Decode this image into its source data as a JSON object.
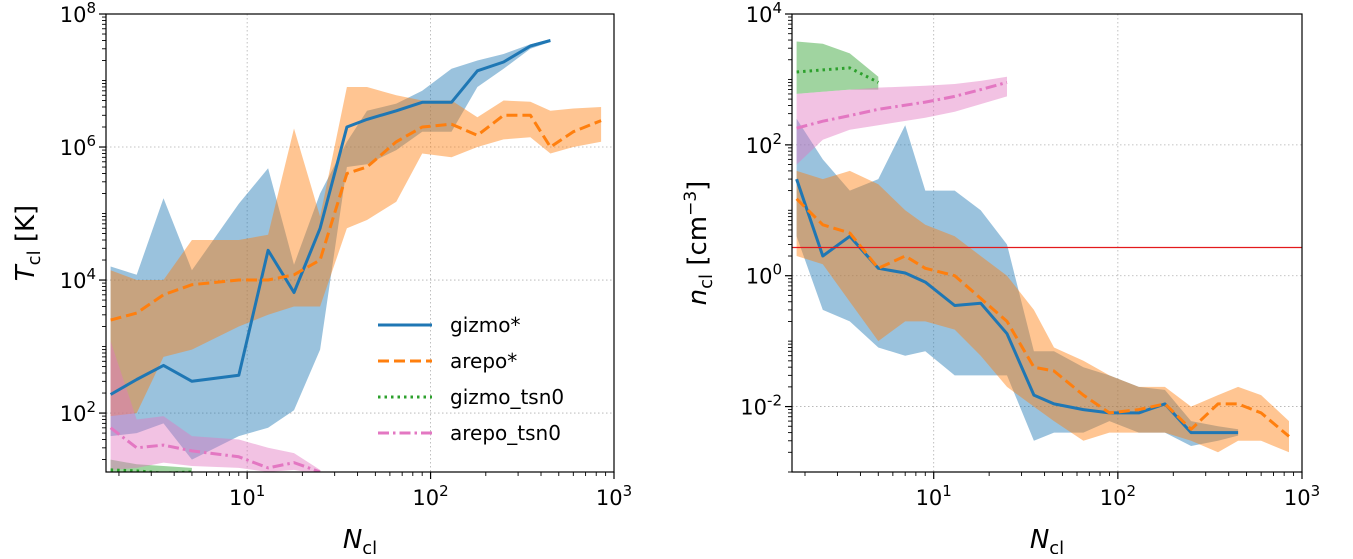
{
  "colors": {
    "gizmo*": "#1f77b4",
    "arepo*": "#ff7f0e",
    "gizmo_tsn0": "#2ca02c",
    "arepo_tsn0": "#e377c2",
    "threshold": "#e31a1c"
  },
  "chart_data": [
    {
      "type": "line",
      "xscale": "log",
      "yscale": "log",
      "xlim": [
        1.7,
        1000
      ],
      "ylim": [
        13,
        100000000
      ],
      "xlabel": "N_cl",
      "ylabel": "T_cl [K]",
      "xticks": [
        10,
        100,
        1000
      ],
      "yticks": [
        100,
        10000,
        1000000,
        100000000
      ],
      "grid": true,
      "legend": {
        "placement": "lower-right",
        "entries": [
          "gizmo*",
          "arepo*",
          "gizmo_tsn0",
          "arepo_tsn0"
        ]
      },
      "series": [
        {
          "name": "gizmo*",
          "style": "solid",
          "x": [
            1.8,
            2.5,
            3.5,
            5,
            9,
            13,
            18,
            25,
            35,
            45,
            65,
            90,
            130,
            180,
            250,
            350,
            450
          ],
          "y": [
            190,
            320,
            520,
            300,
            370,
            28000,
            6500,
            60000,
            2000000,
            2600000,
            3500000,
            4700000,
            4700000,
            14000000,
            19000000,
            33000000,
            40000000
          ],
          "band_lower": [
            45,
            50,
            70,
            20,
            45,
            60,
            110,
            900,
            500000,
            550000,
            900000,
            1700000,
            1700000,
            8000000,
            15000000,
            30000000,
            38000000
          ],
          "band_upper": [
            16000,
            12000,
            170000,
            14000,
            140000,
            480000,
            17000,
            200000,
            1200000,
            3500000,
            4500000,
            7000000,
            15000000,
            20000000,
            25000000,
            35000000,
            42000000
          ]
        },
        {
          "name": "arepo*",
          "style": "dashed",
          "x": [
            1.8,
            2.5,
            3.5,
            5,
            9,
            13,
            18,
            25,
            35,
            45,
            65,
            90,
            130,
            180,
            250,
            350,
            450,
            600,
            850
          ],
          "y": [
            2500,
            3200,
            6000,
            8500,
            10000,
            10000,
            12000,
            20000,
            400000,
            500000,
            1200000,
            2000000,
            2200000,
            1500000,
            3000000,
            3000000,
            1000000,
            1700000,
            2500000
          ],
          "band_lower": [
            90,
            100,
            700,
            900,
            2000,
            3000,
            4000,
            4000,
            60000,
            80000,
            150000,
            800000,
            700000,
            1000000,
            1300000,
            1400000,
            800000,
            1000000,
            1200000
          ],
          "band_upper": [
            14000,
            10000,
            10000,
            40000,
            40000,
            48000,
            1900000,
            90000,
            8000000,
            8000000,
            6000000,
            5000000,
            5000000,
            2800000,
            5000000,
            4800000,
            3500000,
            3800000,
            4000000
          ]
        },
        {
          "name": "gizmo_tsn0",
          "style": "dotted",
          "x": [
            1.8,
            2.5,
            3.5,
            5
          ],
          "y": [
            14,
            13.5,
            12.5,
            13
          ],
          "band_lower": [
            13,
            12,
            11,
            12
          ],
          "band_upper": [
            20,
            17,
            16,
            15
          ]
        },
        {
          "name": "arepo_tsn0",
          "style": "dashdot",
          "x": [
            1.8,
            2.5,
            3.5,
            5,
            9,
            13,
            18,
            25
          ],
          "y": [
            60,
            30,
            33,
            27,
            22,
            15,
            18,
            13
          ],
          "band_lower": [
            14,
            15,
            18,
            16,
            15,
            13,
            14,
            12
          ],
          "band_upper": [
            1200,
            80,
            90,
            45,
            40,
            30,
            25,
            14
          ]
        }
      ]
    },
    {
      "type": "line",
      "xscale": "log",
      "yscale": "log",
      "xlim": [
        1.7,
        1000
      ],
      "ylim": [
        0.001,
        10000
      ],
      "xlabel": "N_cl",
      "ylabel": "n_cl [cm^-3]",
      "xticks": [
        10,
        100,
        1000
      ],
      "yticks": [
        0.01,
        1,
        100,
        10000
      ],
      "grid": true,
      "hline": 2.7,
      "series": [
        {
          "name": "gizmo*",
          "style": "solid",
          "x": [
            1.8,
            2.5,
            3.5,
            5,
            7,
            9,
            13,
            18,
            25,
            35,
            45,
            65,
            90,
            130,
            180,
            250,
            350,
            450
          ],
          "y": [
            30,
            2,
            4,
            1.3,
            1.1,
            0.8,
            0.35,
            0.38,
            0.13,
            0.015,
            0.011,
            0.009,
            0.008,
            0.008,
            0.011,
            0.004,
            0.004,
            0.004
          ],
          "band_lower": [
            4,
            0.3,
            0.2,
            0.08,
            0.06,
            0.07,
            0.03,
            0.03,
            0.03,
            0.003,
            0.004,
            0.004,
            0.006,
            0.004,
            0.004,
            0.0025,
            0.003,
            0.0036
          ],
          "band_upper": [
            250,
            60,
            20,
            30,
            200,
            20,
            20,
            10,
            3,
            0.07,
            0.07,
            0.04,
            0.03,
            0.02,
            0.018,
            0.006,
            0.005,
            0.0045
          ]
        },
        {
          "name": "arepo*",
          "style": "dashed",
          "x": [
            1.8,
            2.5,
            3.5,
            5,
            7,
            9,
            13,
            18,
            25,
            35,
            45,
            65,
            90,
            130,
            180,
            250,
            350,
            450,
            600,
            850
          ],
          "y": [
            15,
            6,
            4.5,
            1.3,
            2,
            1.3,
            1,
            0.45,
            0.2,
            0.04,
            0.035,
            0.015,
            0.008,
            0.009,
            0.011,
            0.0045,
            0.011,
            0.011,
            0.008,
            0.0035
          ],
          "band_lower": [
            2,
            1.5,
            0.4,
            0.1,
            0.2,
            0.2,
            0.15,
            0.06,
            0.02,
            0.01,
            0.006,
            0.003,
            0.004,
            0.004,
            0.004,
            0.003,
            0.002,
            0.003,
            0.003,
            0.002
          ],
          "band_upper": [
            40,
            30,
            40,
            25,
            10,
            6,
            4,
            2,
            1,
            0.3,
            0.08,
            0.05,
            0.03,
            0.02,
            0.02,
            0.01,
            0.015,
            0.02,
            0.015,
            0.006
          ]
        },
        {
          "name": "gizmo_tsn0",
          "style": "dotted",
          "x": [
            1.8,
            2.5,
            3.5,
            5
          ],
          "y": [
            1300,
            1400,
            1500,
            900
          ],
          "band_lower": [
            600,
            650,
            700,
            700
          ],
          "band_upper": [
            3800,
            3500,
            2500,
            1100
          ]
        },
        {
          "name": "arepo_tsn0",
          "style": "dashdot",
          "x": [
            1.8,
            2.5,
            3.5,
            5,
            9,
            13,
            18,
            25
          ],
          "y": [
            180,
            230,
            280,
            350,
            450,
            550,
            700,
            900
          ],
          "band_lower": [
            50,
            120,
            170,
            200,
            260,
            320,
            420,
            550
          ],
          "band_upper": [
            600,
            650,
            700,
            750,
            800,
            850,
            950,
            1100
          ]
        }
      ]
    }
  ]
}
